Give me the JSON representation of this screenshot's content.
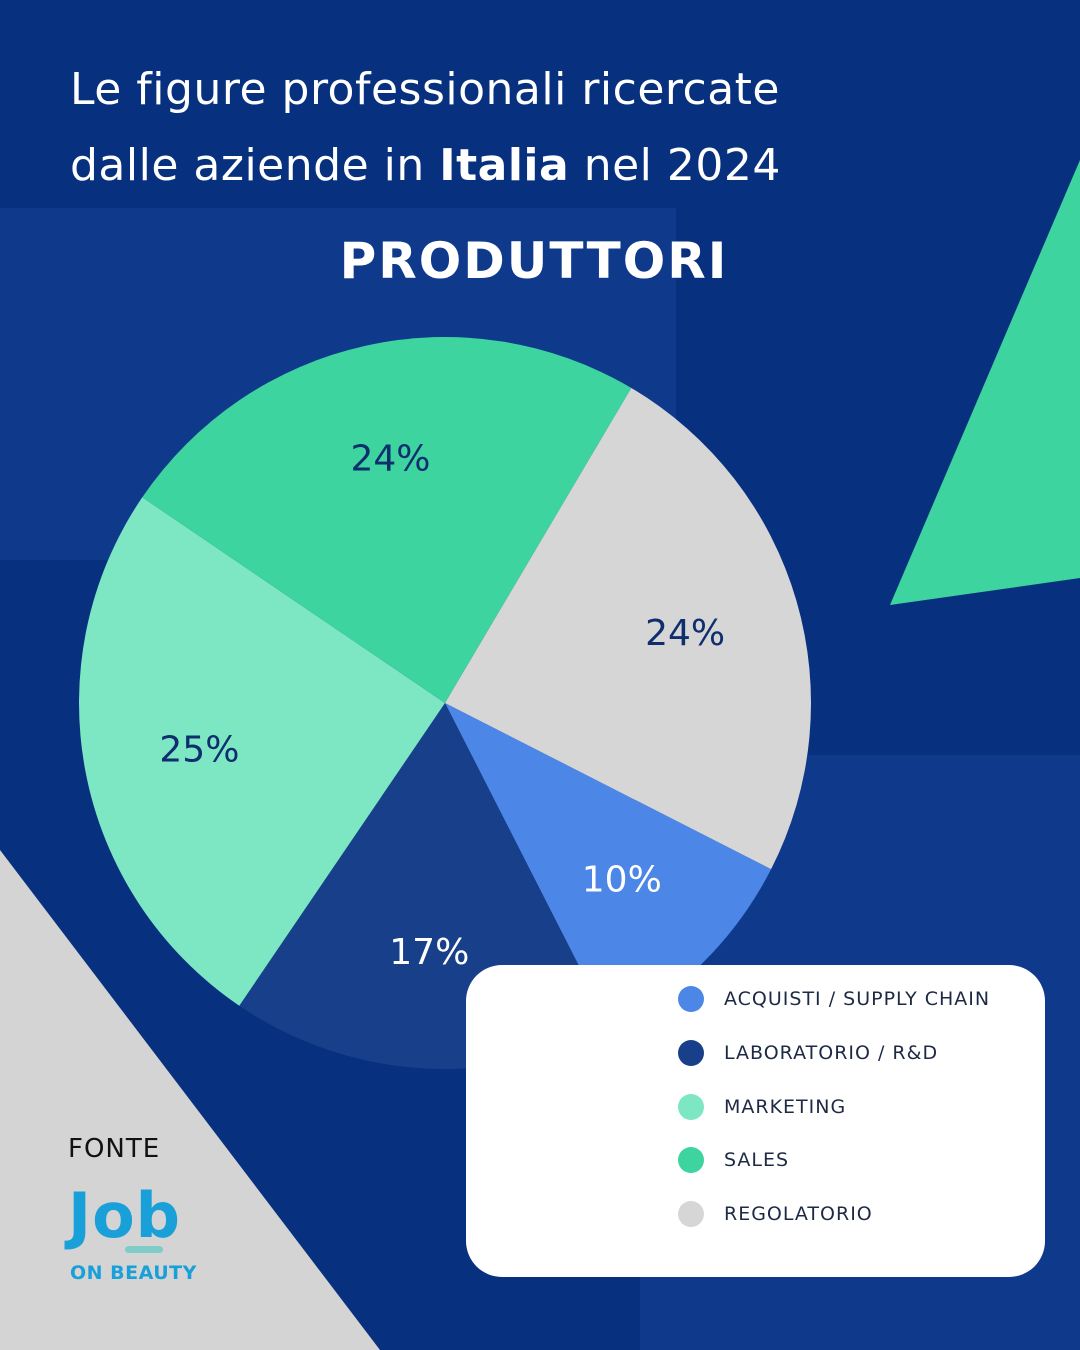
{
  "header": {
    "title_line1": "Le figure professionali ricercate",
    "title_line2_prefix": "dalle aziende in",
    "title_line2_bold": "Italia",
    "title_line2_suffix": "nel  2024"
  },
  "colors": {
    "background": "#07307f",
    "panel": "#0f3a8c",
    "accent_green": "#3dd49f",
    "light_grey": "#d4d4d4"
  },
  "chart_data": {
    "type": "pie",
    "title": "PRODUTTORI",
    "slices": [
      {
        "label": "ACQUISTI / SUPPLY CHAIN",
        "value": 10,
        "display": "10%",
        "color": "#4c86e6",
        "text_color": "#ffffff"
      },
      {
        "label": "LABORATORIO / R&D",
        "value": 17,
        "display": "17%",
        "color": "#18408a",
        "text_color": "#ffffff"
      },
      {
        "label": "MARKETING",
        "value": 25,
        "display": "25%",
        "color": "#7de7c4",
        "text_color": "#0e2e6e"
      },
      {
        "label": "SALES",
        "value": 24,
        "display": "24%",
        "color": "#3dd49f",
        "text_color": "#0e2e6e"
      },
      {
        "label": "REGOLATORIO",
        "value": 24,
        "display": "24%",
        "color": "#d6d6d6",
        "text_color": "#0e2e6e"
      }
    ],
    "legend_position": "bottom-right"
  },
  "footer": {
    "source_label": "FONTE",
    "logo_word": "Job",
    "logo_subtitle": "ON BEAUTY"
  }
}
